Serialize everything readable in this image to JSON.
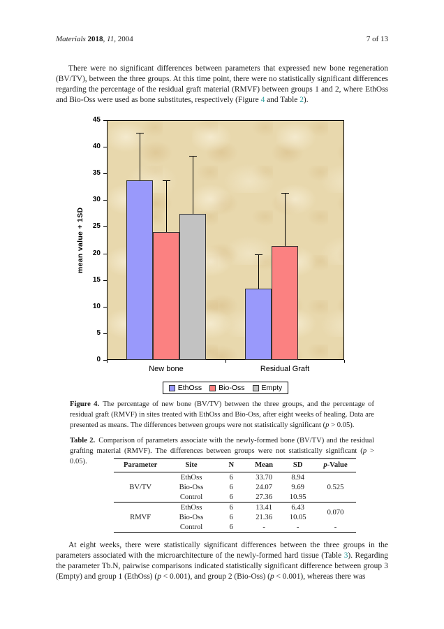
{
  "colors": {
    "link": "#2e9e9e",
    "text": "#1c1c1c",
    "chart_plot_bg": "#e8d8ad"
  },
  "header": {
    "citation_runs": [
      {
        "t": "Materials",
        "i": true
      },
      {
        "t": " "
      },
      {
        "t": "2018",
        "b": true
      },
      {
        "t": ", "
      },
      {
        "t": "11",
        "i": true
      },
      {
        "t": ", 2004"
      }
    ],
    "page_info": "7 of 13"
  },
  "paragraphs": {
    "p1": [
      {
        "t": "There were no significant differences between parameters that expressed new bone regeneration (BV/TV), between the three groups. At this time point, there were no statistically significant differences regarding the percentage of the residual graft material (RMVF) between groups 1 and 2, where EthOss and Bio-Oss were used as bone substitutes, respectively (Figure "
      },
      {
        "t": "4",
        "link": true
      },
      {
        "t": " and Table "
      },
      {
        "t": "2",
        "link": true
      },
      {
        "t": ")."
      }
    ],
    "p2": [
      {
        "t": "At eight weeks, there were statistically significant differences between the three groups in the parameters associated with the microarchitecture of the newly-formed hard tissue (Table "
      },
      {
        "t": "3",
        "link": true
      },
      {
        "t": "). Regarding the parameter Tb.N, pairwise comparisons indicated statistically significant difference between group 3 (Empty) and group 1 (EthOss) ("
      },
      {
        "t": "p",
        "i": true
      },
      {
        "t": " < 0.001), and group 2 (Bio-Oss) ("
      },
      {
        "t": "p",
        "i": true
      },
      {
        "t": " < 0.001), whereas there was"
      }
    ]
  },
  "chart_data": {
    "type": "bar",
    "categories": [
      "New bone",
      "Residual Graft"
    ],
    "series": [
      {
        "name": "EthOss",
        "color": "#9999fb",
        "values": [
          33.7,
          13.41
        ],
        "sd": [
          8.94,
          6.43
        ]
      },
      {
        "name": "Bio-Oss",
        "color": "#fb8181",
        "values": [
          24.07,
          21.36
        ],
        "sd": [
          9.69,
          10.05
        ]
      },
      {
        "name": "Empty",
        "color": "#c2c2c2",
        "values": [
          27.36,
          null
        ],
        "sd": [
          10.95,
          null
        ]
      }
    ],
    "title": "",
    "xlabel": "",
    "ylabel": "mean value + 1SD",
    "ylim": [
      0,
      45
    ],
    "ytick_step": 5,
    "grid": false,
    "error_bars": "+1SD",
    "legend_position": "bottom"
  },
  "figure": {
    "caption_label": "Figure 4.",
    "caption_runs": [
      {
        "t": "The percentage of new bone (BV/TV) between the three groups, and the percentage of residual graft (RMVF) in sites treated with EthOss and Bio-Oss, after eight weeks of healing. Data are presented as means. The differences between groups were not statistically significant ("
      },
      {
        "t": "p",
        "i": true
      },
      {
        "t": " > 0.05)."
      }
    ]
  },
  "table2": {
    "caption_label": "Table 2.",
    "caption_runs": [
      {
        "t": "Comparison of parameters associate with the newly-formed bone (BV/TV) and the residual grafting material (RMVF). The differences between groups were not statistically significant ("
      },
      {
        "t": "p",
        "i": true
      },
      {
        "t": " > 0.05)."
      }
    ],
    "columns": [
      [
        {
          "t": "Parameter"
        }
      ],
      [
        {
          "t": "Site"
        }
      ],
      [
        {
          "t": "N"
        }
      ],
      [
        {
          "t": "Mean"
        }
      ],
      [
        {
          "t": "SD"
        }
      ],
      [
        {
          "t": "p",
          "i": true
        },
        {
          "t": "-Value"
        }
      ]
    ],
    "col_widths": [
      "22%",
      "20%",
      "13%",
      "14%",
      "14%",
      "17%"
    ],
    "groups": [
      {
        "parameter": "BV/TV",
        "p_value": "0.525",
        "p_span": 3,
        "rows": [
          {
            "site": "EthOss",
            "n": "6",
            "mean": "33.70",
            "sd": "8.94"
          },
          {
            "site": "Bio-Oss",
            "n": "6",
            "mean": "24.07",
            "sd": "9.69"
          },
          {
            "site": "Control",
            "n": "6",
            "mean": "27.36",
            "sd": "10.95"
          }
        ]
      },
      {
        "parameter": "RMVF",
        "p_value": "0.070",
        "p_span": 2,
        "rows": [
          {
            "site": "EthOss",
            "n": "6",
            "mean": "13.41",
            "sd": "6.43"
          },
          {
            "site": "Bio-Oss",
            "n": "6",
            "mean": "21.36",
            "sd": "10.05"
          },
          {
            "site": "Control",
            "n": "6",
            "mean": "-",
            "sd": "-",
            "p": "-"
          }
        ]
      }
    ]
  }
}
